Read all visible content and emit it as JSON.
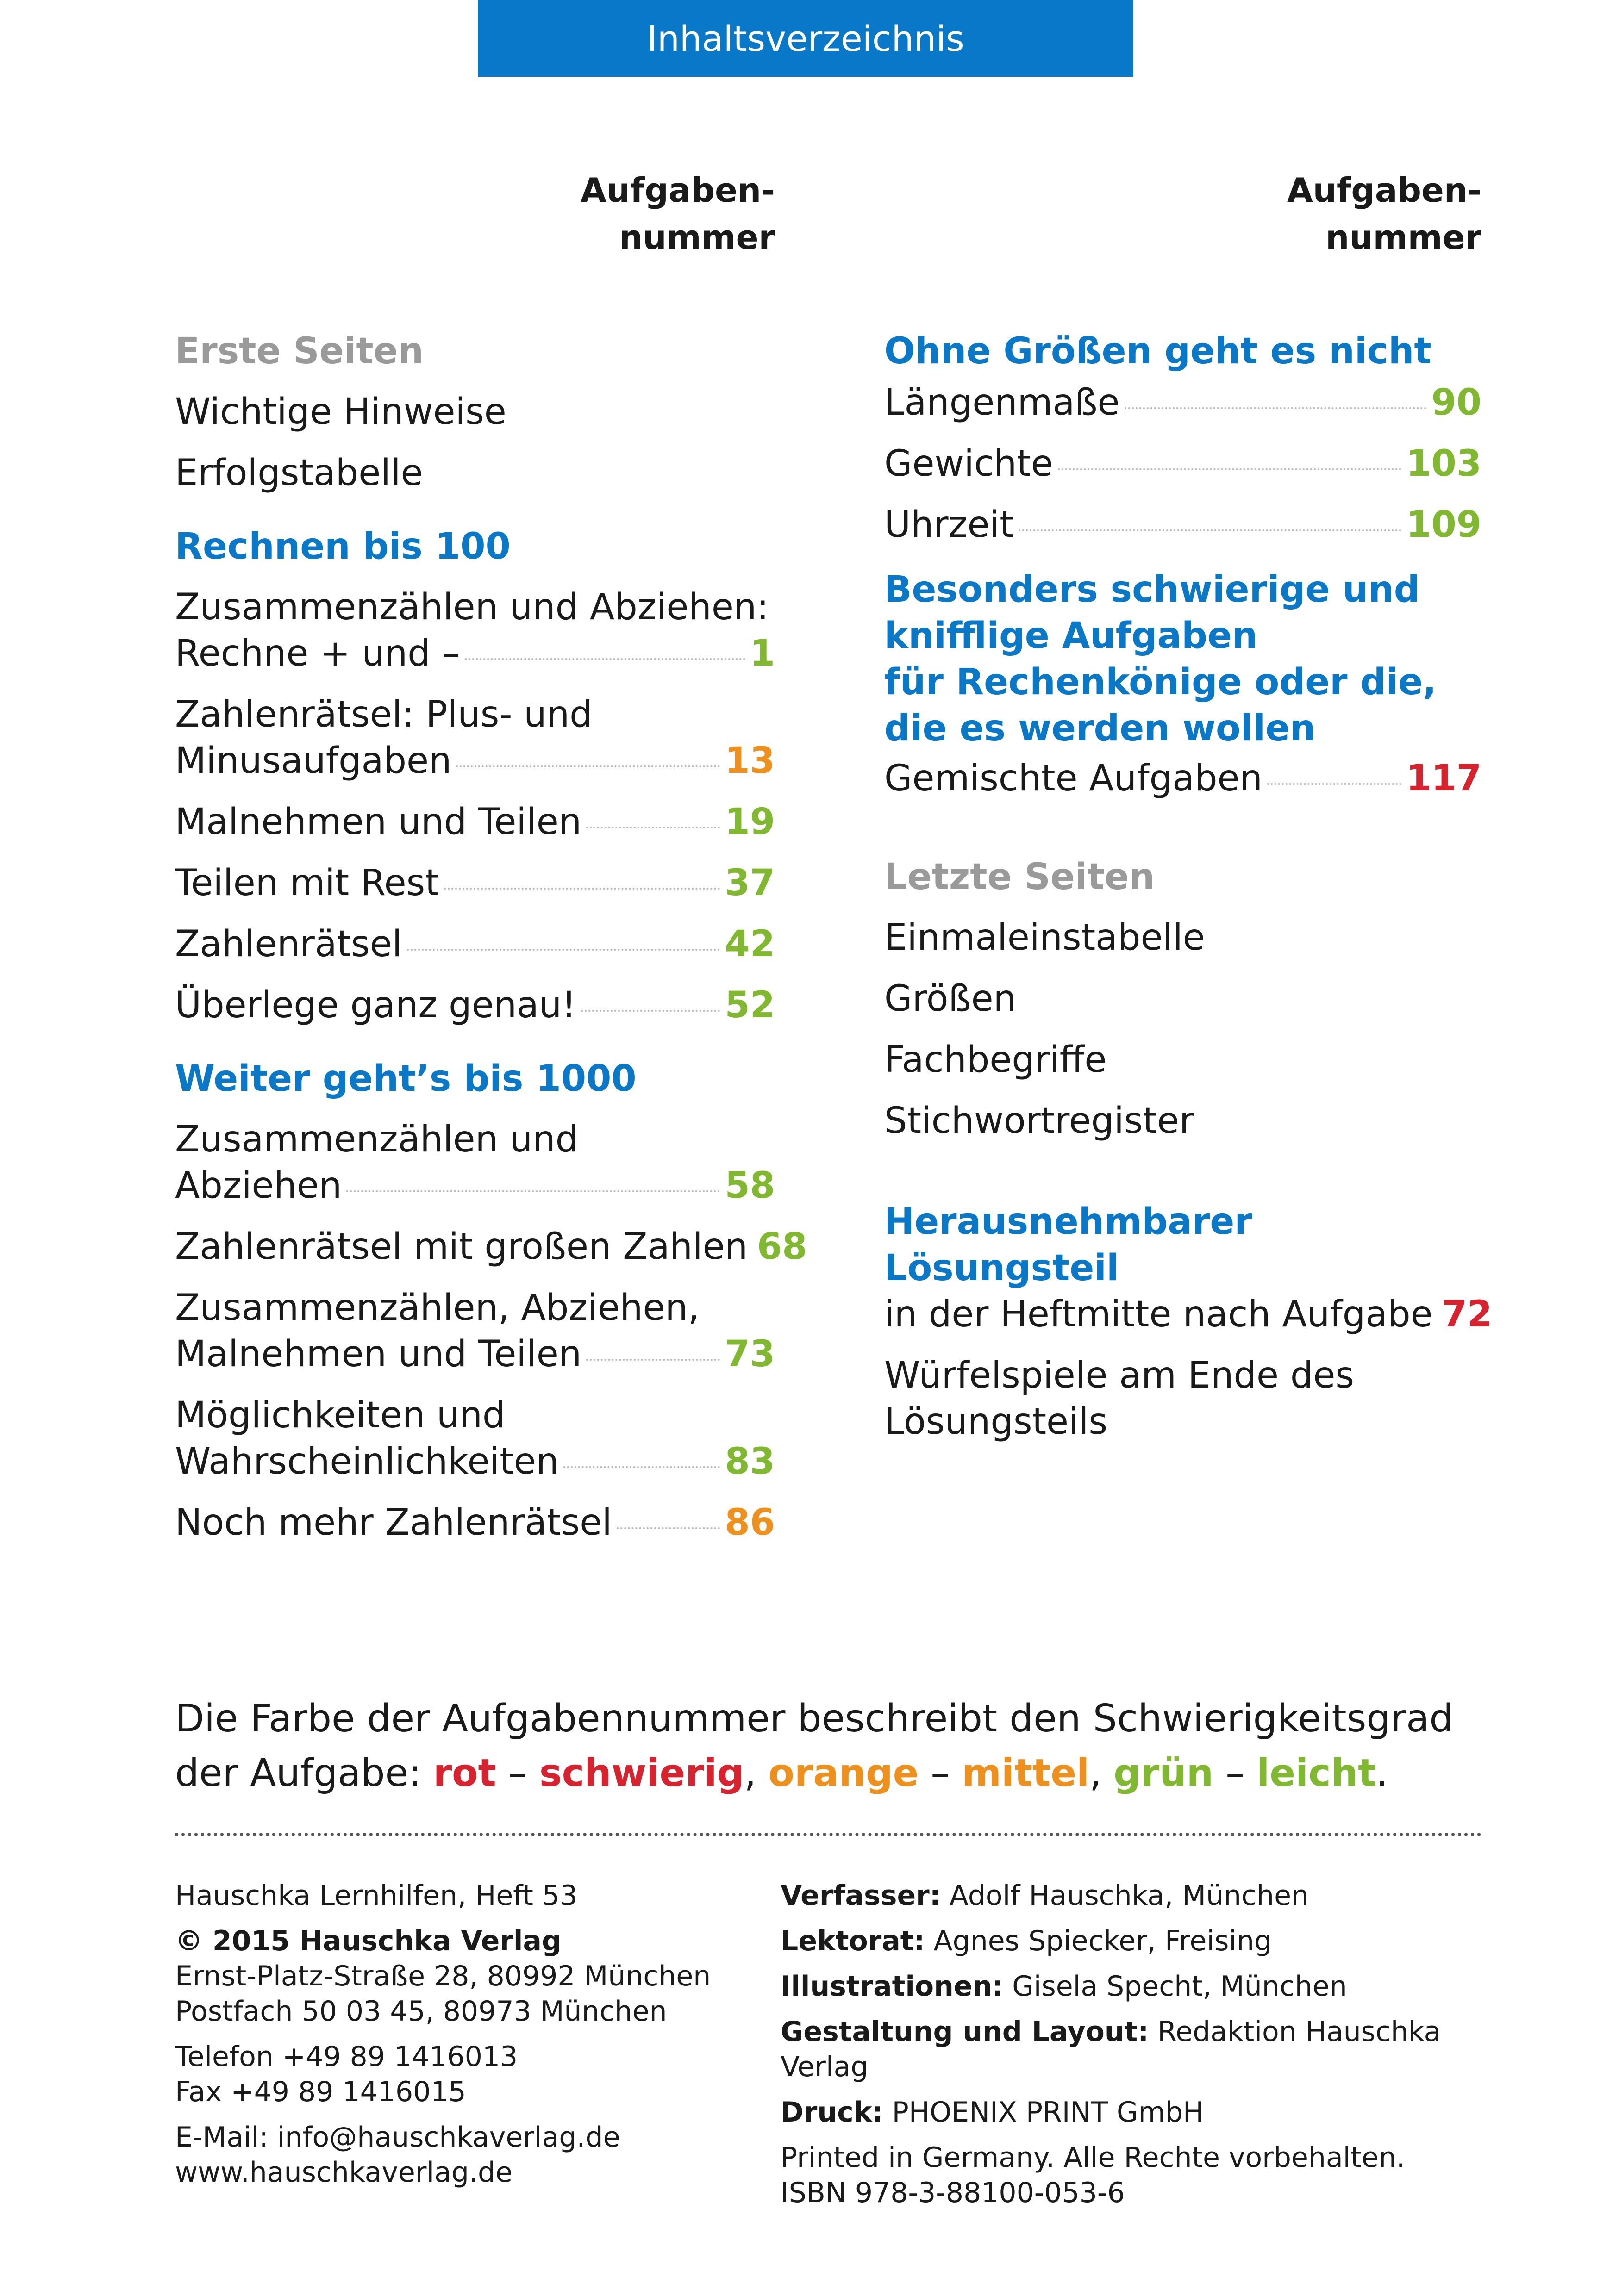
{
  "header": {
    "title": "Inhaltsverzeichnis"
  },
  "column_heading": {
    "line1": "Aufgaben-",
    "line2": "nummer"
  },
  "left_column": {
    "erste_seiten": {
      "title": "Erste Seiten",
      "items": [
        "Wichtige Hinweise",
        "Erfolgstabelle"
      ]
    },
    "rechnen_100": {
      "title": "Rechnen bis 100",
      "entries": [
        {
          "line1": "Zusammenzählen und Abziehen:",
          "label": "Rechne + und –",
          "number": "1",
          "color": "green"
        },
        {
          "line1": "Zahlenrätsel: Plus- und",
          "label": "Minusaufgaben",
          "number": "13",
          "color": "orange"
        },
        {
          "label": "Malnehmen und Teilen",
          "number": "19",
          "color": "green"
        },
        {
          "label": "Teilen mit Rest",
          "number": "37",
          "color": "green"
        },
        {
          "label": "Zahlenrätsel",
          "number": "42",
          "color": "green"
        },
        {
          "label": "Überlege ganz genau!",
          "number": "52",
          "color": "green"
        }
      ]
    },
    "weiter_1000": {
      "title": "Weiter geht’s bis 1000",
      "entries": [
        {
          "line1": "Zusammenzählen und",
          "label": "Abziehen",
          "number": "58",
          "color": "green"
        },
        {
          "label": "Zahlenrätsel mit großen Zahlen",
          "number": "68",
          "color": "green"
        },
        {
          "line1": "Zusammenzählen, Abziehen,",
          "label": "Malnehmen und Teilen",
          "number": "73",
          "color": "green"
        },
        {
          "line1": "Möglichkeiten und",
          "label": "Wahrscheinlichkeiten",
          "number": "83",
          "color": "green"
        },
        {
          "label": "Noch mehr Zahlenrätsel",
          "number": "86",
          "color": "orange"
        }
      ]
    }
  },
  "right_column": {
    "groessen": {
      "title": "Ohne Größen geht es nicht",
      "entries": [
        {
          "label": "Längenmaße",
          "number": "90",
          "color": "green"
        },
        {
          "label": "Gewichte",
          "number": "103",
          "color": "green"
        },
        {
          "label": "Uhrzeit",
          "number": "109",
          "color": "green"
        }
      ]
    },
    "schwierig": {
      "title_lines": [
        "Besonders schwierige und",
        "knifflige Aufgaben",
        "für Rechenkönige oder die,",
        "die es werden wollen"
      ],
      "entries": [
        {
          "label": "Gemischte Aufgaben",
          "number": "117",
          "color": "red"
        }
      ]
    },
    "letzte_seiten": {
      "title": "Letzte Seiten",
      "items": [
        "Einmaleinstabelle",
        "Größen",
        "Fachbegriffe",
        "Stichwortregister"
      ]
    },
    "loesungsteil": {
      "title": "Herausnehmbarer Lösungsteil",
      "entries": [
        {
          "label": "in der Heftmitte nach Aufgabe",
          "number": "72",
          "color": "red"
        }
      ],
      "extra_lines": [
        "Würfelspiele am Ende des",
        "Lösungsteils"
      ]
    }
  },
  "difficulty_note": {
    "line1": "Die Farbe der Aufgabennummer beschreibt den Schwierigkeitsgrad",
    "prefix": "der Aufgabe: ",
    "red_word": "rot",
    "dash1": " – ",
    "red_level": "schwierig",
    "comma1": ", ",
    "orange_word": "orange",
    "dash2": " – ",
    "orange_level": "mittel",
    "comma2": ", ",
    "green_word": "grün",
    "dash3": " – ",
    "green_level": "leicht",
    "end": "."
  },
  "imprint_left": {
    "series": "Hauschka Lernhilfen, Heft 53",
    "copyright": "© 2015 Hauschka Verlag",
    "address1": "Ernst-Platz-Straße 28, 80992 München",
    "address2": "Postfach 50 03 45, 80973 München",
    "phone": "Telefon +49 89 1416013",
    "fax": "Fax +49 89 1416015",
    "email": "E-Mail: info@hauschkaverlag.de",
    "web": "www.hauschkaverlag.de"
  },
  "imprint_right": {
    "author_label": "Verfasser:",
    "author": " Adolf Hauschka, München",
    "editor_label": "Lektorat:",
    "editor": " Agnes Spiecker, Freising",
    "illus_label": "Illustrationen:",
    "illus": " Gisela Specht, München",
    "layout_label": "Gestaltung und Layout:",
    "layout": " Redaktion Hauschka Verlag",
    "print_label": "Druck:",
    "print": " PHOENIX PRINT GmbH",
    "rights": "Printed in Germany. Alle Rechte vorbehalten.",
    "isbn": "ISBN 978-3-88100-053-6"
  },
  "colors": {
    "blue": "#0a78c8",
    "green": "#80b92f",
    "orange": "#f0901c",
    "red": "#d8222d",
    "grey": "#9a9a9a"
  }
}
